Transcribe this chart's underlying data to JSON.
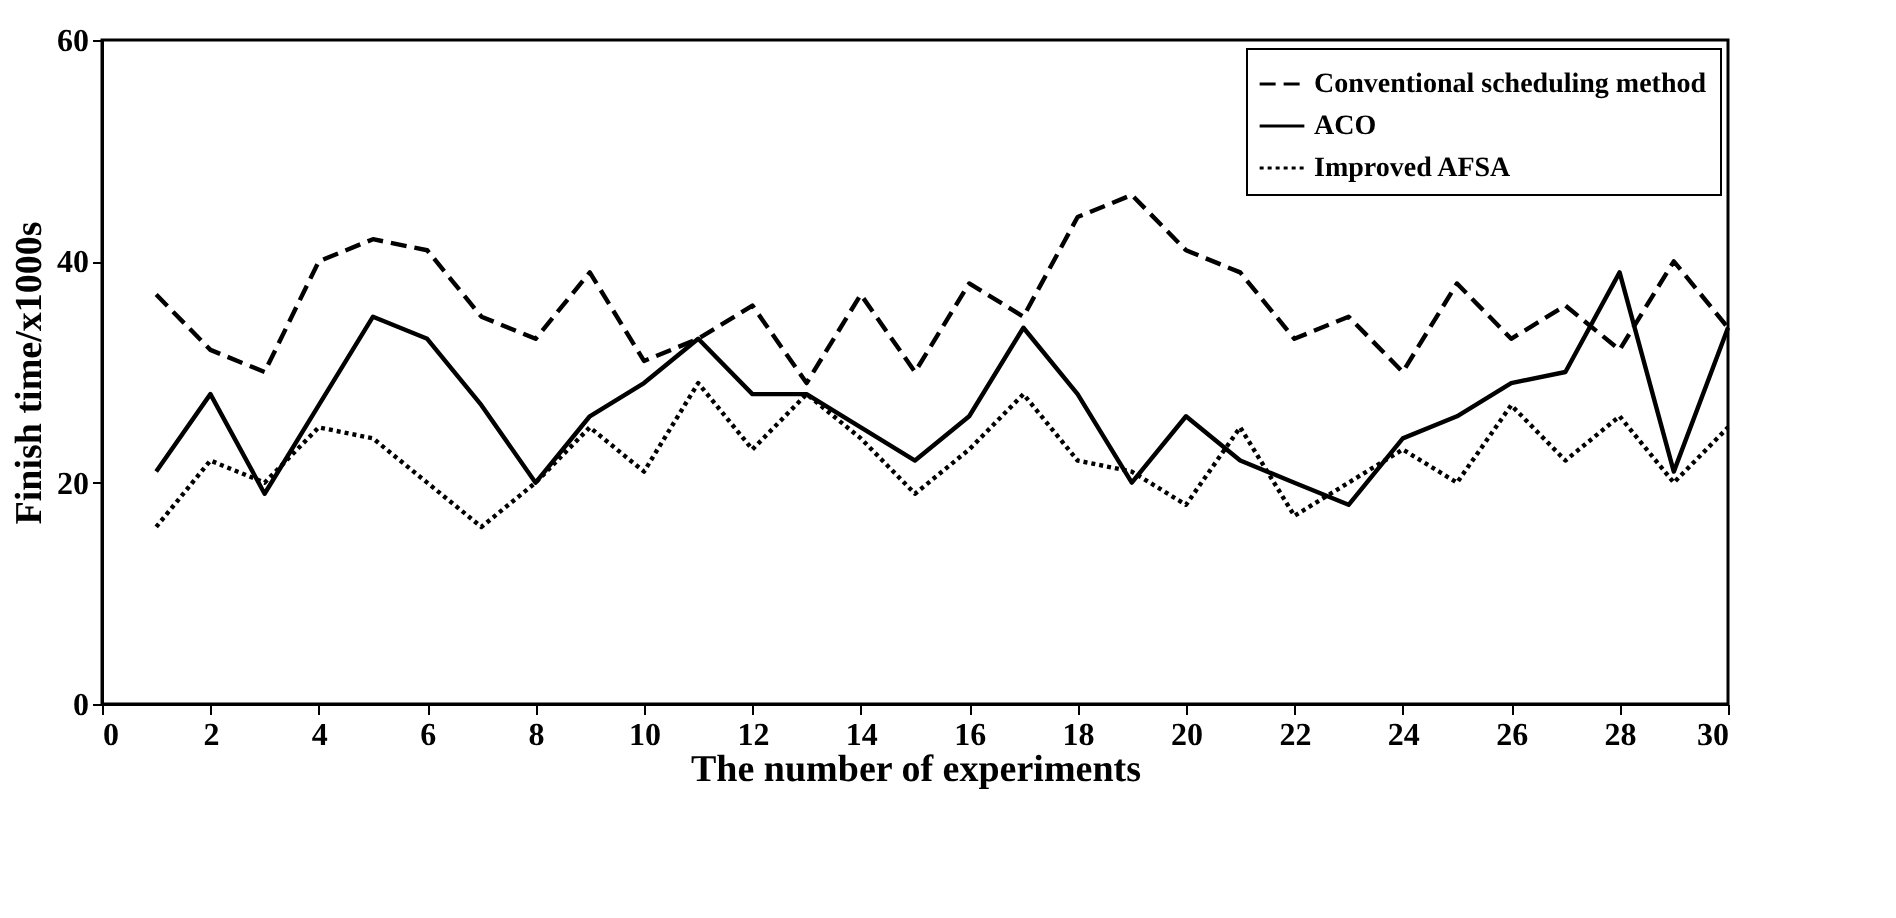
{
  "chart_data": {
    "type": "line",
    "xlabel": "The number of experiments",
    "ylabel": "Finish time/x1000s",
    "x": [
      1,
      2,
      3,
      4,
      5,
      6,
      7,
      8,
      9,
      10,
      11,
      12,
      13,
      14,
      15,
      16,
      17,
      18,
      19,
      20,
      21,
      22,
      23,
      24,
      25,
      26,
      27,
      28,
      29,
      30
    ],
    "xlim": [
      0,
      30
    ],
    "xticks": [
      0,
      2,
      4,
      6,
      8,
      10,
      12,
      14,
      16,
      18,
      20,
      22,
      24,
      26,
      28,
      30
    ],
    "ylim": [
      0,
      60
    ],
    "yticks": [
      0,
      20,
      40,
      60
    ],
    "grid": false,
    "legend": "top right",
    "marker": "none",
    "series": [
      {
        "name": "Conventional scheduling method",
        "color": "#000000",
        "line_style": "dashed",
        "values": [
          37,
          32,
          30,
          40,
          42,
          41,
          35,
          33,
          39,
          31,
          33,
          36,
          29,
          37,
          30,
          38,
          35,
          44,
          46,
          41,
          39,
          33,
          35,
          30,
          38,
          33,
          36,
          32,
          40,
          34
        ]
      },
      {
        "name": "ACO",
        "color": "#000000",
        "line_style": "solid",
        "values": [
          21,
          28,
          19,
          27,
          35,
          33,
          27,
          20,
          26,
          29,
          33,
          28,
          28,
          25,
          22,
          26,
          34,
          28,
          20,
          26,
          22,
          20,
          18,
          24,
          26,
          29,
          30,
          39,
          21,
          34
        ]
      },
      {
        "name": "Improved AFSA",
        "color": "#000000",
        "line_style": "dotted",
        "values": [
          16,
          22,
          20,
          25,
          24,
          20,
          16,
          20,
          25,
          21,
          29,
          23,
          28,
          24,
          19,
          23,
          28,
          22,
          21,
          18,
          25,
          17,
          20,
          23,
          20,
          27,
          22,
          26,
          20,
          25
        ]
      }
    ]
  }
}
